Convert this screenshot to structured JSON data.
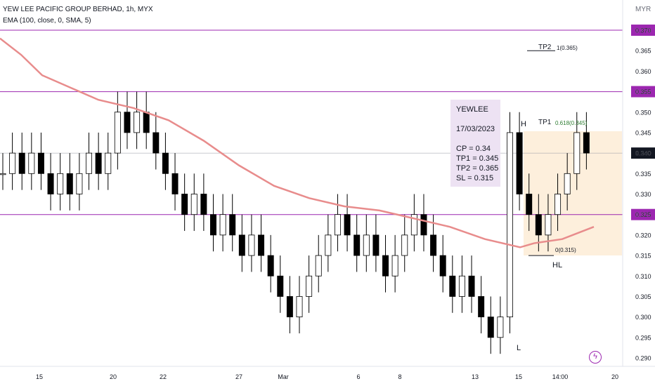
{
  "header": {
    "title": "YEW LEE PACIFIC GROUP BERHAD, 1h, MYX",
    "indicator": "EMA (100, close, 0, SMA, 5)",
    "currency": "MYR"
  },
  "note": {
    "ticker": "YEWLEE",
    "date": "17/03/2023",
    "cp": "CP = 0.34",
    "tp1": "TP1 = 0.345",
    "tp2": "TP2 = 0.365",
    "sl": "SL = 0.315"
  },
  "annotations": {
    "tp1": "TP1",
    "tp2": "TP2",
    "fib_tp1": "0.618(0.345)",
    "fib_tp2": "1(0.365)",
    "fib_sl": "0(0.315)",
    "high": "H",
    "low": "L",
    "higher_low": "HL"
  },
  "colors": {
    "up": "#ffffff",
    "down": "#000000",
    "ema": "#e88c8c",
    "level": "#9c27b0",
    "zone": "#fdebd3",
    "current": "#131722"
  },
  "chart_data": {
    "type": "candlestick",
    "timeframe": "1h",
    "ylim": [
      0.288,
      0.382
    ],
    "y_ticks": [
      0.29,
      0.295,
      0.3,
      0.305,
      0.31,
      0.315,
      0.32,
      0.325,
      0.33,
      0.335,
      0.34,
      0.345,
      0.35,
      0.355,
      0.36,
      0.365,
      0.37
    ],
    "x_tick_labels": [
      "15",
      "20",
      "22",
      "27",
      "Mar",
      "6",
      "8",
      "13",
      "15",
      "14:00",
      "20"
    ],
    "horizontal_levels": [
      0.37,
      0.355,
      0.325
    ],
    "current_price": 0.34,
    "target_zone": [
      0.315,
      0.345
    ],
    "close_path": [
      0.335,
      0.34,
      0.335,
      0.34,
      0.335,
      0.33,
      0.335,
      0.33,
      0.335,
      0.34,
      0.335,
      0.34,
      0.35,
      0.345,
      0.35,
      0.345,
      0.34,
      0.335,
      0.33,
      0.325,
      0.33,
      0.325,
      0.32,
      0.325,
      0.32,
      0.315,
      0.32,
      0.315,
      0.31,
      0.305,
      0.3,
      0.305,
      0.31,
      0.315,
      0.32,
      0.325,
      0.32,
      0.315,
      0.32,
      0.315,
      0.31,
      0.315,
      0.32,
      0.325,
      0.32,
      0.315,
      0.31,
      0.305,
      0.31,
      0.305,
      0.3,
      0.295,
      0.3,
      0.345,
      0.33,
      0.325,
      0.32,
      0.325,
      0.33,
      0.335,
      0.345,
      0.34
    ],
    "ema100": [
      [
        0,
        0.368
      ],
      [
        30,
        0.364
      ],
      [
        60,
        0.359
      ],
      [
        100,
        0.356
      ],
      [
        140,
        0.353
      ],
      [
        190,
        0.351
      ],
      [
        240,
        0.348
      ],
      [
        290,
        0.343
      ],
      [
        340,
        0.337
      ],
      [
        390,
        0.332
      ],
      [
        440,
        0.329
      ],
      [
        490,
        0.327
      ],
      [
        540,
        0.326
      ],
      [
        590,
        0.324
      ],
      [
        640,
        0.322
      ],
      [
        690,
        0.319
      ],
      [
        740,
        0.317
      ],
      [
        760,
        0.318
      ],
      [
        800,
        0.319
      ],
      [
        845,
        0.322
      ]
    ]
  }
}
